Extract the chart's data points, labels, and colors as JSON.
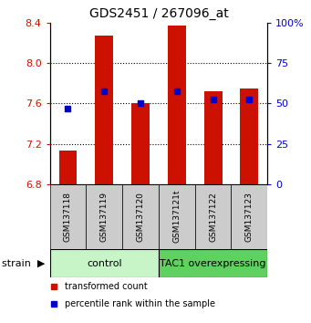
{
  "title": "GDS2451 / 267096_at",
  "samples": [
    "GSM137118",
    "GSM137119",
    "GSM137120",
    "GSM137121t",
    "GSM137122",
    "GSM137123"
  ],
  "red_values": [
    7.13,
    8.27,
    7.6,
    8.37,
    7.72,
    7.75
  ],
  "blue_values": [
    7.55,
    7.72,
    7.6,
    7.72,
    7.64,
    7.64
  ],
  "ylim_left": [
    6.8,
    8.4
  ],
  "ylim_right": [
    0,
    100
  ],
  "yticks_left": [
    6.8,
    7.2,
    7.6,
    8.0,
    8.4
  ],
  "yticks_right": [
    0,
    25,
    50,
    75,
    100
  ],
  "groups": [
    {
      "label": "control",
      "indices": [
        0,
        1,
        2
      ],
      "color": "#c8f5c8"
    },
    {
      "label": "TAC1 overexpressing",
      "indices": [
        3,
        4,
        5
      ],
      "color": "#60d060"
    }
  ],
  "bar_width": 0.5,
  "bar_color_red": "#cc1100",
  "bar_color_blue": "#0000cc",
  "background_color": "#ffffff",
  "tick_label_color_left": "#cc1100",
  "tick_label_color_right": "#0000cc",
  "legend": [
    {
      "color": "#cc1100",
      "label": "transformed count"
    },
    {
      "color": "#0000cc",
      "label": "percentile rank within the sample"
    }
  ]
}
